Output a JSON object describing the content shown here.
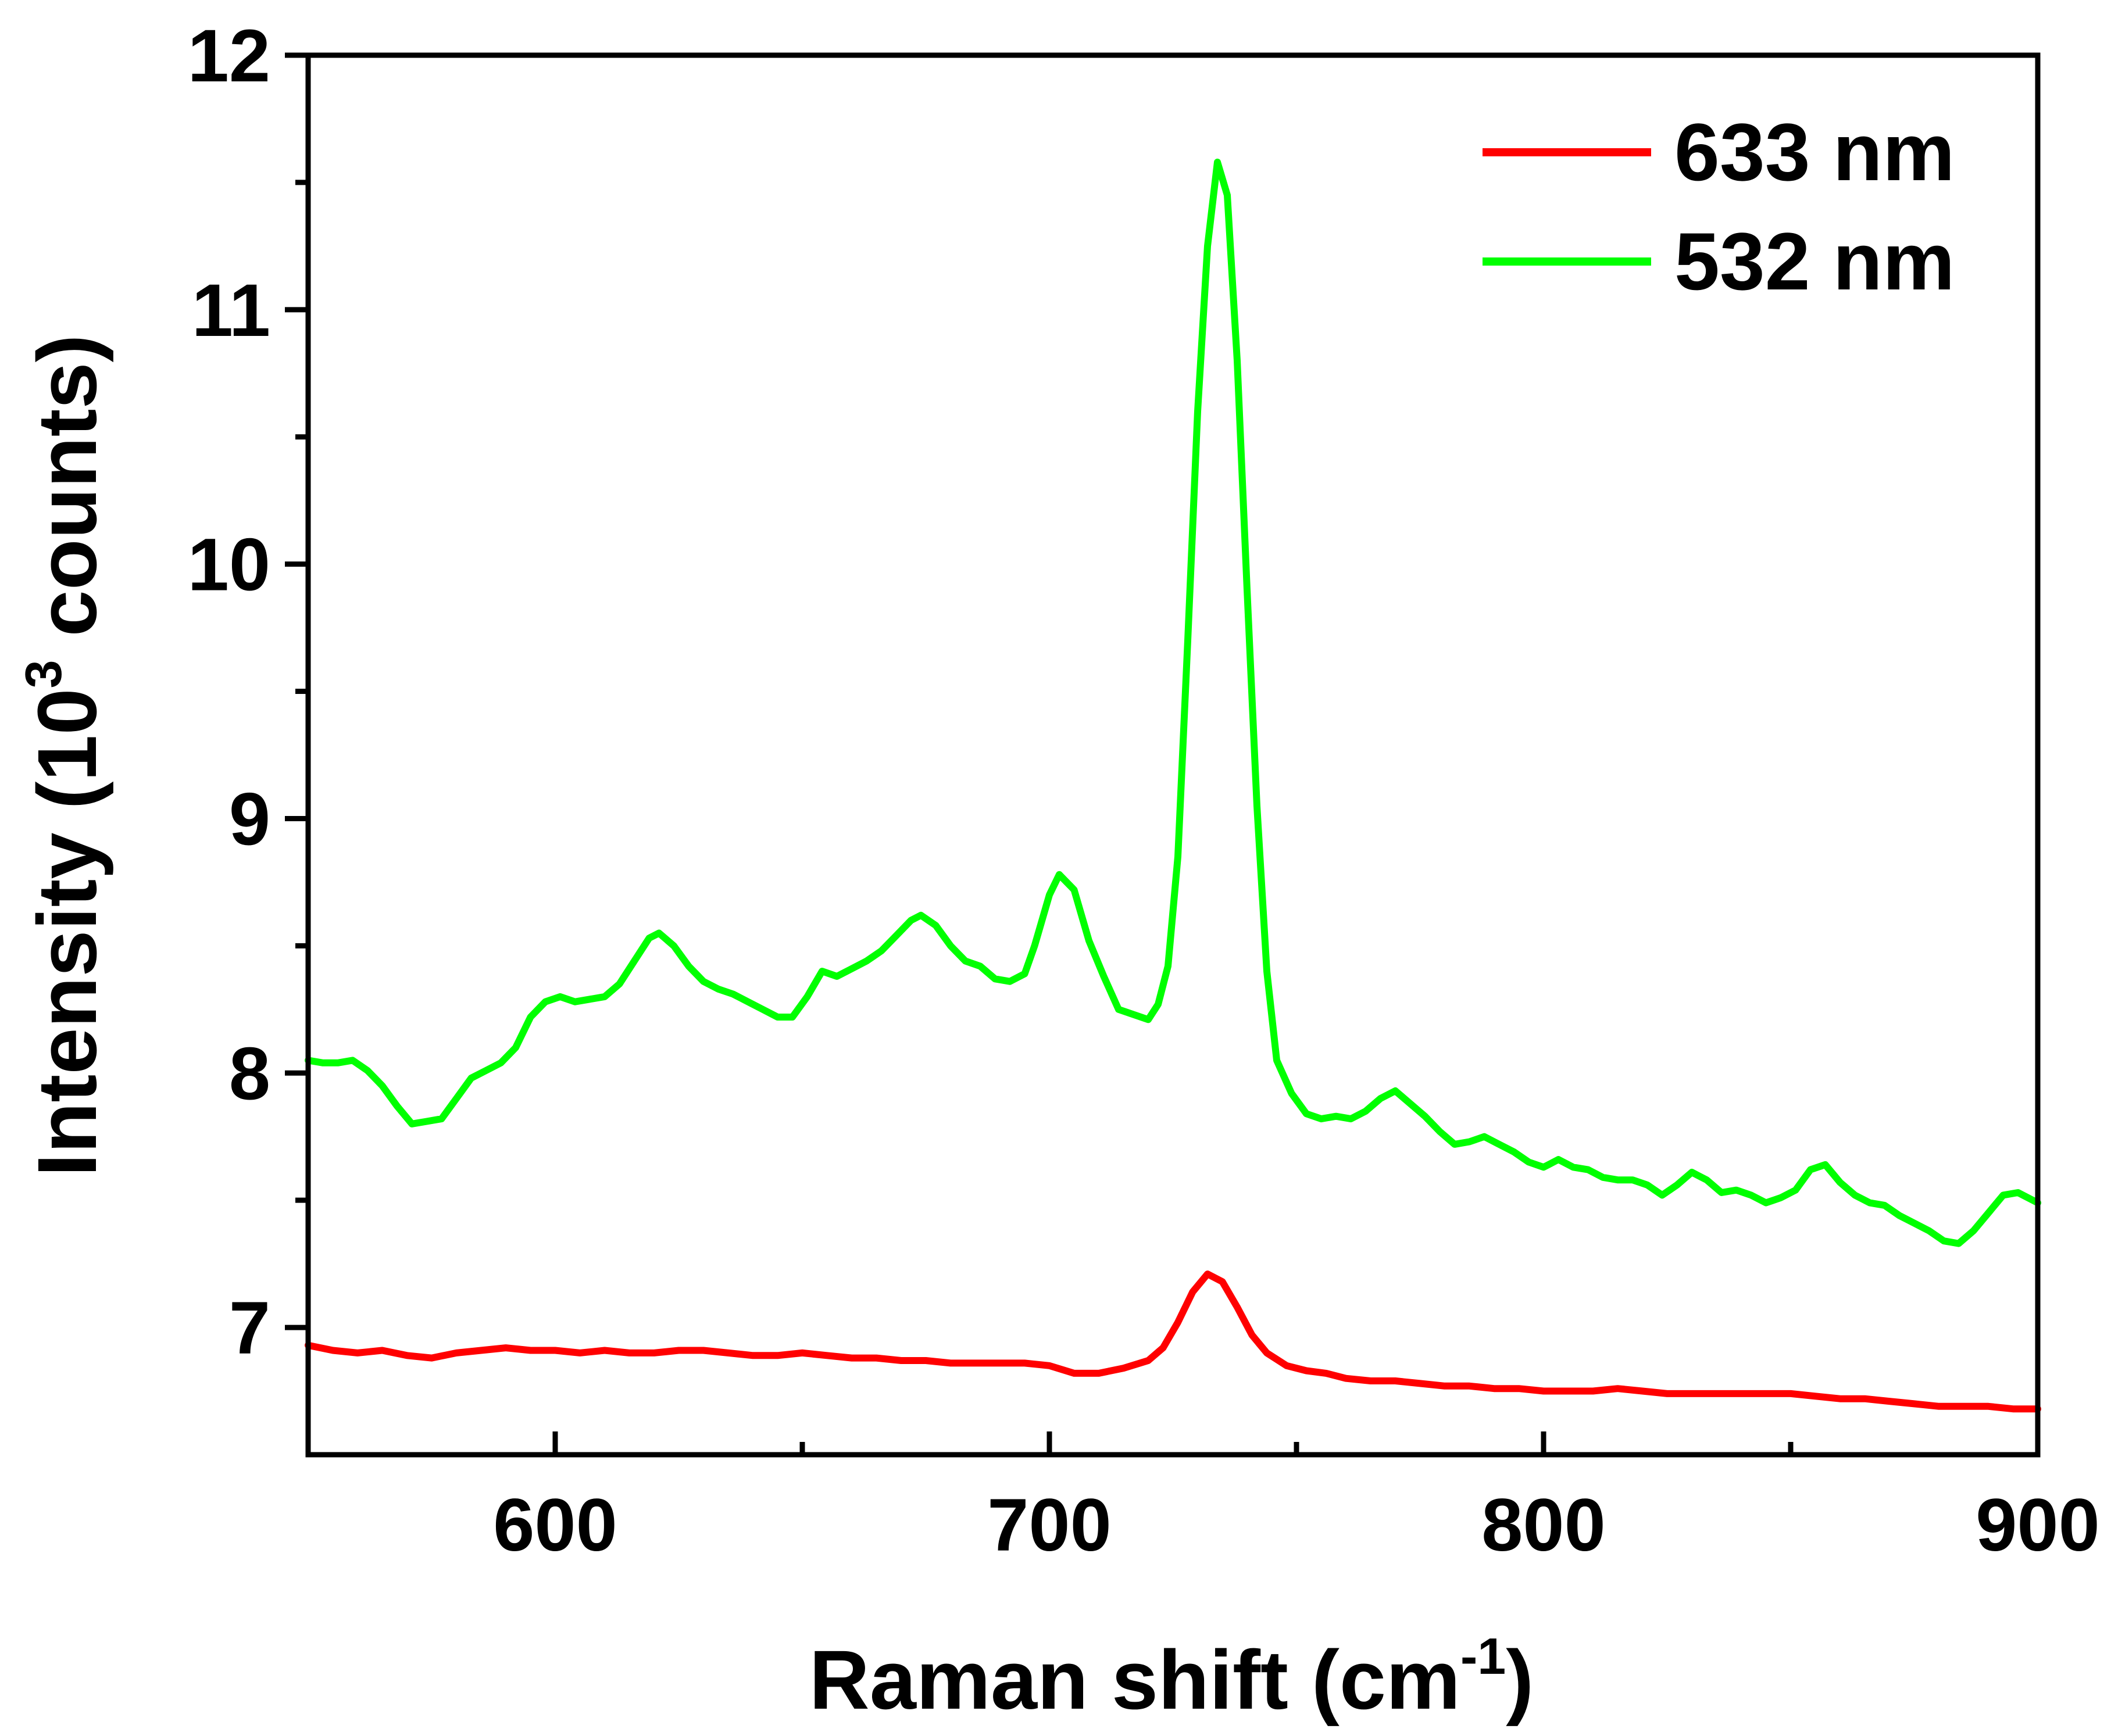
{
  "chart_data": {
    "type": "line",
    "title": "",
    "xlabel": {
      "text": "Raman shift (cm",
      "superscript": "-1",
      "suffix": ")"
    },
    "ylabel": {
      "text": "Intensity (10",
      "superscript": "3",
      "suffix": " counts)"
    },
    "xlim": [
      550,
      900
    ],
    "ylim": [
      6.5,
      12
    ],
    "x_major_ticks": [
      600,
      700,
      800,
      900
    ],
    "x_minor_ticks": [
      650,
      750,
      850
    ],
    "x_tick_labels": [
      "600",
      "700",
      "800",
      "900"
    ],
    "y_major_ticks": [
      7,
      8,
      9,
      10,
      11,
      12
    ],
    "y_minor_ticks": [
      7.5,
      8.5,
      9.5,
      10.5,
      11.5
    ],
    "y_tick_labels": [
      "7",
      "8",
      "9",
      "10",
      "11",
      "12"
    ],
    "grid": false,
    "legend_position": "top-right",
    "series": [
      {
        "name": "633 nm",
        "color": "#ff0000",
        "points": [
          [
            550,
            6.93
          ],
          [
            555,
            6.91
          ],
          [
            560,
            6.9
          ],
          [
            565,
            6.91
          ],
          [
            570,
            6.89
          ],
          [
            575,
            6.88
          ],
          [
            580,
            6.9
          ],
          [
            585,
            6.91
          ],
          [
            590,
            6.92
          ],
          [
            595,
            6.91
          ],
          [
            600,
            6.91
          ],
          [
            605,
            6.9
          ],
          [
            610,
            6.91
          ],
          [
            615,
            6.9
          ],
          [
            620,
            6.9
          ],
          [
            625,
            6.91
          ],
          [
            630,
            6.91
          ],
          [
            635,
            6.9
          ],
          [
            640,
            6.89
          ],
          [
            645,
            6.89
          ],
          [
            650,
            6.9
          ],
          [
            655,
            6.89
          ],
          [
            660,
            6.88
          ],
          [
            665,
            6.88
          ],
          [
            670,
            6.87
          ],
          [
            675,
            6.87
          ],
          [
            680,
            6.86
          ],
          [
            685,
            6.86
          ],
          [
            690,
            6.86
          ],
          [
            695,
            6.86
          ],
          [
            700,
            6.85
          ],
          [
            705,
            6.82
          ],
          [
            710,
            6.82
          ],
          [
            715,
            6.84
          ],
          [
            720,
            6.87
          ],
          [
            723,
            6.92
          ],
          [
            726,
            7.02
          ],
          [
            729,
            7.14
          ],
          [
            732,
            7.21
          ],
          [
            735,
            7.18
          ],
          [
            738,
            7.08
          ],
          [
            741,
            6.97
          ],
          [
            744,
            6.9
          ],
          [
            748,
            6.85
          ],
          [
            752,
            6.83
          ],
          [
            756,
            6.82
          ],
          [
            760,
            6.8
          ],
          [
            765,
            6.79
          ],
          [
            770,
            6.79
          ],
          [
            775,
            6.78
          ],
          [
            780,
            6.77
          ],
          [
            785,
            6.77
          ],
          [
            790,
            6.76
          ],
          [
            795,
            6.76
          ],
          [
            800,
            6.75
          ],
          [
            805,
            6.75
          ],
          [
            810,
            6.75
          ],
          [
            815,
            6.76
          ],
          [
            820,
            6.75
          ],
          [
            825,
            6.74
          ],
          [
            830,
            6.74
          ],
          [
            835,
            6.74
          ],
          [
            840,
            6.74
          ],
          [
            845,
            6.74
          ],
          [
            850,
            6.74
          ],
          [
            855,
            6.73
          ],
          [
            860,
            6.72
          ],
          [
            865,
            6.72
          ],
          [
            870,
            6.71
          ],
          [
            875,
            6.7
          ],
          [
            880,
            6.69
          ],
          [
            885,
            6.69
          ],
          [
            890,
            6.69
          ],
          [
            895,
            6.68
          ],
          [
            900,
            6.68
          ]
        ]
      },
      {
        "name": "532 nm",
        "color": "#00ff00",
        "points": [
          [
            550,
            8.05
          ],
          [
            553,
            8.04
          ],
          [
            556,
            8.04
          ],
          [
            559,
            8.05
          ],
          [
            562,
            8.01
          ],
          [
            565,
            7.95
          ],
          [
            568,
            7.87
          ],
          [
            571,
            7.8
          ],
          [
            574,
            7.81
          ],
          [
            577,
            7.82
          ],
          [
            580,
            7.9
          ],
          [
            583,
            7.98
          ],
          [
            586,
            8.01
          ],
          [
            589,
            8.04
          ],
          [
            592,
            8.1
          ],
          [
            595,
            8.22
          ],
          [
            598,
            8.28
          ],
          [
            601,
            8.3
          ],
          [
            604,
            8.28
          ],
          [
            607,
            8.29
          ],
          [
            610,
            8.3
          ],
          [
            613,
            8.35
          ],
          [
            616,
            8.44
          ],
          [
            619,
            8.53
          ],
          [
            621,
            8.55
          ],
          [
            624,
            8.5
          ],
          [
            627,
            8.42
          ],
          [
            630,
            8.36
          ],
          [
            633,
            8.33
          ],
          [
            636,
            8.31
          ],
          [
            639,
            8.28
          ],
          [
            642,
            8.25
          ],
          [
            645,
            8.22
          ],
          [
            648,
            8.22
          ],
          [
            651,
            8.3
          ],
          [
            654,
            8.4
          ],
          [
            657,
            8.38
          ],
          [
            660,
            8.41
          ],
          [
            663,
            8.44
          ],
          [
            666,
            8.48
          ],
          [
            669,
            8.54
          ],
          [
            672,
            8.6
          ],
          [
            674,
            8.62
          ],
          [
            677,
            8.58
          ],
          [
            680,
            8.5
          ],
          [
            683,
            8.44
          ],
          [
            686,
            8.42
          ],
          [
            689,
            8.37
          ],
          [
            692,
            8.36
          ],
          [
            695,
            8.39
          ],
          [
            697,
            8.5
          ],
          [
            700,
            8.7
          ],
          [
            702,
            8.78
          ],
          [
            705,
            8.72
          ],
          [
            708,
            8.52
          ],
          [
            711,
            8.38
          ],
          [
            714,
            8.25
          ],
          [
            717,
            8.23
          ],
          [
            720,
            8.21
          ],
          [
            722,
            8.27
          ],
          [
            724,
            8.42
          ],
          [
            726,
            8.85
          ],
          [
            728,
            9.7
          ],
          [
            730,
            10.6
          ],
          [
            732,
            11.25
          ],
          [
            734,
            11.58
          ],
          [
            736,
            11.45
          ],
          [
            738,
            10.8
          ],
          [
            740,
            9.9
          ],
          [
            742,
            9.05
          ],
          [
            744,
            8.4
          ],
          [
            746,
            8.05
          ],
          [
            749,
            7.92
          ],
          [
            752,
            7.84
          ],
          [
            755,
            7.82
          ],
          [
            758,
            7.83
          ],
          [
            761,
            7.82
          ],
          [
            764,
            7.85
          ],
          [
            767,
            7.9
          ],
          [
            770,
            7.93
          ],
          [
            773,
            7.88
          ],
          [
            776,
            7.83
          ],
          [
            779,
            7.77
          ],
          [
            782,
            7.72
          ],
          [
            785,
            7.73
          ],
          [
            788,
            7.75
          ],
          [
            791,
            7.72
          ],
          [
            794,
            7.69
          ],
          [
            797,
            7.65
          ],
          [
            800,
            7.63
          ],
          [
            803,
            7.66
          ],
          [
            806,
            7.63
          ],
          [
            809,
            7.62
          ],
          [
            812,
            7.59
          ],
          [
            815,
            7.58
          ],
          [
            818,
            7.58
          ],
          [
            821,
            7.56
          ],
          [
            824,
            7.52
          ],
          [
            827,
            7.56
          ],
          [
            830,
            7.61
          ],
          [
            833,
            7.58
          ],
          [
            836,
            7.53
          ],
          [
            839,
            7.54
          ],
          [
            842,
            7.52
          ],
          [
            845,
            7.49
          ],
          [
            848,
            7.51
          ],
          [
            851,
            7.54
          ],
          [
            854,
            7.62
          ],
          [
            857,
            7.64
          ],
          [
            860,
            7.57
          ],
          [
            863,
            7.52
          ],
          [
            866,
            7.49
          ],
          [
            869,
            7.48
          ],
          [
            872,
            7.44
          ],
          [
            875,
            7.41
          ],
          [
            878,
            7.38
          ],
          [
            881,
            7.34
          ],
          [
            884,
            7.33
          ],
          [
            887,
            7.38
          ],
          [
            890,
            7.45
          ],
          [
            893,
            7.52
          ],
          [
            896,
            7.53
          ],
          [
            900,
            7.49
          ]
        ]
      }
    ]
  }
}
